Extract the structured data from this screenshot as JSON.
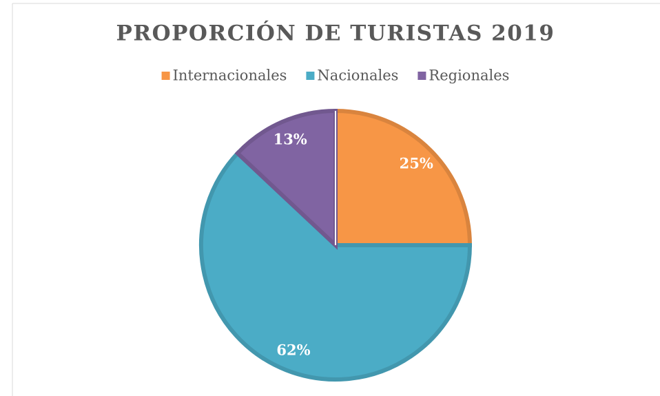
{
  "chart_data": {
    "type": "pie",
    "title": "PROPORCIÓN DE TURISTAS 2019",
    "categories": [
      "Internacionales",
      "Nacionales",
      "Regionales"
    ],
    "values": [
      25,
      62,
      13
    ],
    "value_labels": [
      "25%",
      "62%",
      "13%"
    ],
    "colors": [
      "#f79646",
      "#4bacc6",
      "#8064a2"
    ],
    "legend": "top"
  }
}
